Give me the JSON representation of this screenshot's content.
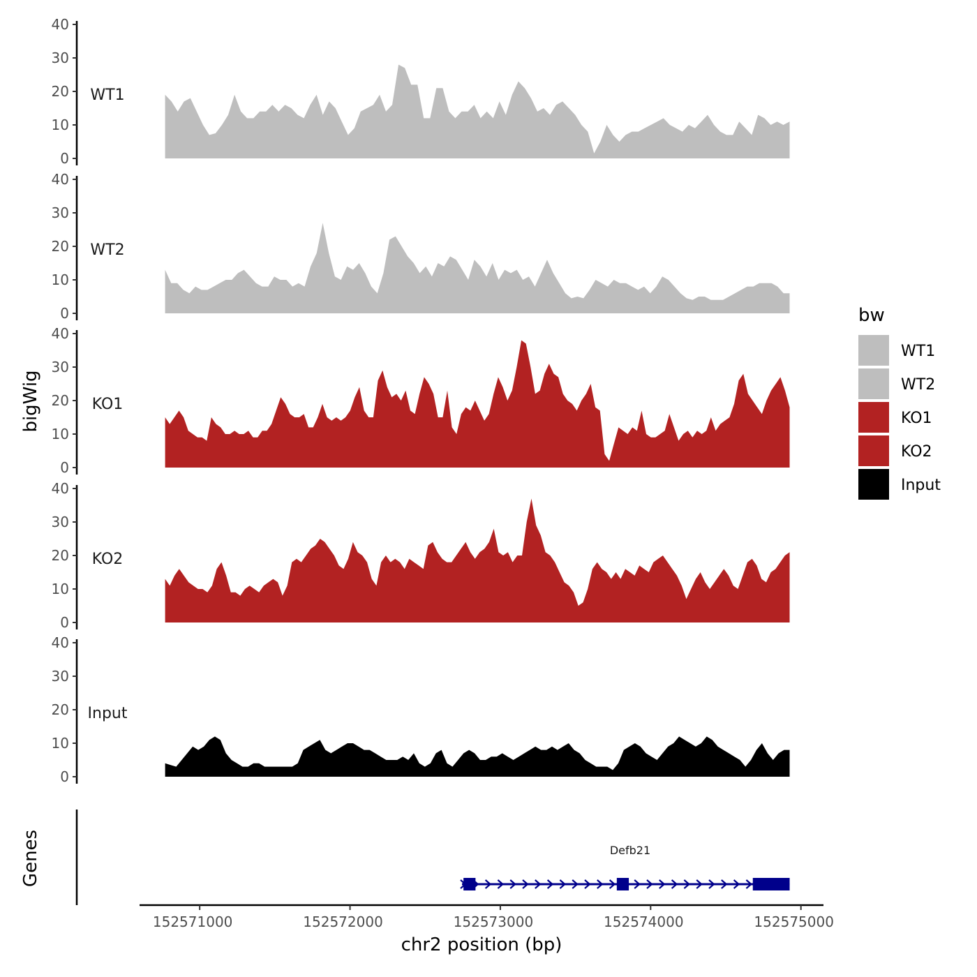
{
  "chart_data": {
    "type": "area",
    "ylabel": "bigWig",
    "xlabel": "chr2 position (bp)",
    "genes_label": "Genes",
    "ylim": [
      0,
      40
    ],
    "y_ticks": [
      "0",
      "10",
      "20",
      "30",
      "40"
    ],
    "xlim": [
      152570600,
      152575150
    ],
    "x_ticks": [
      152571000,
      152572000,
      152573000,
      152574000,
      152575000
    ],
    "x_tick_labels": [
      "152571000",
      "152572000",
      "152573000",
      "152574000",
      "152575000"
    ],
    "x_start": 152570770,
    "x_end": 152574925,
    "legend": {
      "title": "bw",
      "position": "right",
      "entries": [
        {
          "label": "WT1",
          "color": "#bebebe"
        },
        {
          "label": "WT2",
          "color": "#bebebe"
        },
        {
          "label": "KO1",
          "color": "#b22222"
        },
        {
          "label": "KO2",
          "color": "#b22222"
        },
        {
          "label": "Input",
          "color": "#000000"
        }
      ]
    },
    "series": [
      {
        "name": "WT1",
        "color": "#bebebe",
        "values": [
          19,
          17,
          14,
          17,
          18,
          14,
          10,
          7,
          7.5,
          10,
          13,
          19,
          14,
          12,
          12,
          14,
          14,
          16,
          14,
          16,
          15,
          13,
          12,
          16,
          19,
          13,
          17,
          15,
          11,
          7,
          9,
          14,
          15,
          16,
          19,
          14,
          16,
          28,
          27,
          22,
          22,
          12,
          12,
          21,
          21,
          14,
          12,
          14,
          14,
          16,
          12,
          14,
          12,
          17,
          13,
          19,
          23,
          21,
          18,
          14,
          15,
          13,
          16,
          17,
          15,
          13,
          10,
          8,
          1.5,
          5,
          10,
          7,
          5,
          7,
          8,
          8,
          9,
          10,
          11,
          12,
          10,
          9,
          8,
          10,
          9,
          11,
          13,
          10,
          8,
          7,
          7,
          11,
          9,
          7,
          13,
          12,
          10,
          11,
          10,
          11
        ]
      },
      {
        "name": "WT2",
        "color": "#bebebe",
        "values": [
          13,
          9,
          9,
          7,
          6,
          8,
          7,
          7,
          8,
          9,
          10,
          10,
          12,
          13,
          11,
          9,
          8,
          8,
          11,
          10,
          10,
          8,
          9,
          8,
          14,
          18,
          27,
          18,
          11,
          10,
          14,
          13,
          15,
          12,
          8,
          6,
          12,
          22,
          23,
          20,
          17,
          15,
          12,
          14,
          11,
          15,
          14,
          17,
          16,
          13,
          10,
          16,
          14,
          11,
          15,
          10,
          13,
          12,
          13,
          10,
          11,
          8,
          12,
          16,
          12,
          9,
          6,
          4.5,
          5,
          4.5,
          7,
          10,
          9,
          8,
          10,
          9,
          9,
          8,
          7,
          8,
          6,
          8,
          11,
          10,
          8,
          6,
          4.5,
          4,
          5,
          5,
          4,
          4,
          4,
          5,
          6,
          7,
          8,
          8,
          9,
          9,
          9,
          8,
          6,
          6
        ]
      },
      {
        "name": "KO1",
        "color": "#b22222",
        "values": [
          15,
          13,
          15,
          17,
          15,
          11,
          10,
          9,
          9,
          8,
          15,
          13,
          12,
          10,
          10,
          11,
          10,
          10,
          11,
          9,
          9,
          11,
          11,
          13,
          17,
          21,
          19,
          16,
          15,
          15,
          16,
          12,
          12,
          15,
          19,
          15,
          14,
          15,
          14,
          15,
          17,
          21,
          24,
          17,
          15,
          15,
          26,
          29,
          24,
          21,
          22,
          20,
          23,
          17,
          16,
          22,
          27,
          25,
          22,
          15,
          15,
          23,
          12,
          10,
          16,
          18,
          17,
          20,
          17,
          14,
          16,
          22,
          27,
          24,
          20,
          23,
          30,
          38,
          37,
          30,
          22,
          23,
          28,
          31,
          28,
          27,
          22,
          20,
          19,
          17,
          20,
          22,
          25,
          18,
          17,
          4,
          2,
          7,
          12,
          11,
          10,
          12,
          11,
          17,
          10,
          9,
          9,
          10,
          11,
          16,
          12,
          8,
          10,
          11,
          9,
          11,
          10,
          11,
          15,
          11,
          13,
          14,
          15,
          19,
          26,
          28,
          22,
          20,
          18,
          16,
          20,
          23,
          25,
          27,
          23,
          18
        ]
      },
      {
        "name": "KO2",
        "color": "#b22222",
        "values": [
          13,
          11,
          14,
          16,
          14,
          12,
          11,
          10,
          10,
          9,
          11,
          16,
          18,
          14,
          9,
          9,
          8,
          10,
          11,
          10,
          9,
          11,
          12,
          13,
          12,
          8,
          11,
          18,
          19,
          18,
          20,
          22,
          23,
          25,
          24,
          22,
          20,
          17,
          16,
          19,
          24,
          21,
          20,
          18,
          13,
          11,
          18,
          20,
          18,
          19,
          18,
          16,
          19,
          18,
          17,
          16,
          23,
          24,
          21,
          19,
          18,
          18,
          20,
          22,
          24,
          21,
          19,
          21,
          22,
          24,
          28,
          21,
          20,
          21,
          18,
          20,
          20,
          30,
          37,
          29,
          26,
          21,
          20,
          18,
          15,
          12,
          11,
          9,
          5,
          6,
          10,
          16,
          18,
          16,
          15,
          13,
          15,
          13,
          16,
          15,
          14,
          17,
          16,
          15,
          18,
          19,
          20,
          18,
          16,
          14,
          11,
          7,
          10,
          13,
          15,
          12,
          10,
          12,
          14,
          16,
          14,
          11,
          10,
          14,
          18,
          19,
          17,
          13,
          12,
          15,
          16,
          18,
          20,
          21
        ]
      },
      {
        "name": "Input",
        "color": "#000000",
        "values": [
          4,
          3.5,
          3,
          5,
          7,
          9,
          8,
          9,
          11,
          12,
          11,
          7,
          5,
          4,
          3,
          3,
          4,
          4,
          3,
          3,
          3,
          3,
          3,
          3,
          4,
          8,
          9,
          10,
          11,
          8,
          7,
          8,
          9,
          10,
          10,
          9,
          8,
          8,
          7,
          6,
          5,
          5,
          5,
          6,
          5,
          7,
          4,
          3,
          4,
          7,
          8,
          4,
          3,
          5,
          7,
          8,
          7,
          5,
          5,
          6,
          6,
          7,
          6,
          5,
          6,
          7,
          8,
          9,
          8,
          8,
          9,
          8,
          9,
          10,
          8,
          7,
          5,
          4,
          3,
          3,
          3,
          2,
          4,
          8,
          9,
          10,
          9,
          7,
          6,
          5,
          7,
          9,
          10,
          12,
          11,
          10,
          9,
          10,
          12,
          11,
          9,
          8,
          7,
          6,
          5,
          3,
          5,
          8,
          10,
          7,
          5,
          7,
          8,
          8
        ]
      }
    ],
    "gene_track": {
      "name": "Defb21",
      "color": "#00008b",
      "start": 152572745,
      "end": 152574925,
      "strand": "+",
      "exons": [
        [
          152572755,
          152572835
        ],
        [
          152573775,
          152573855
        ],
        [
          152574680,
          152574925
        ]
      ]
    }
  }
}
